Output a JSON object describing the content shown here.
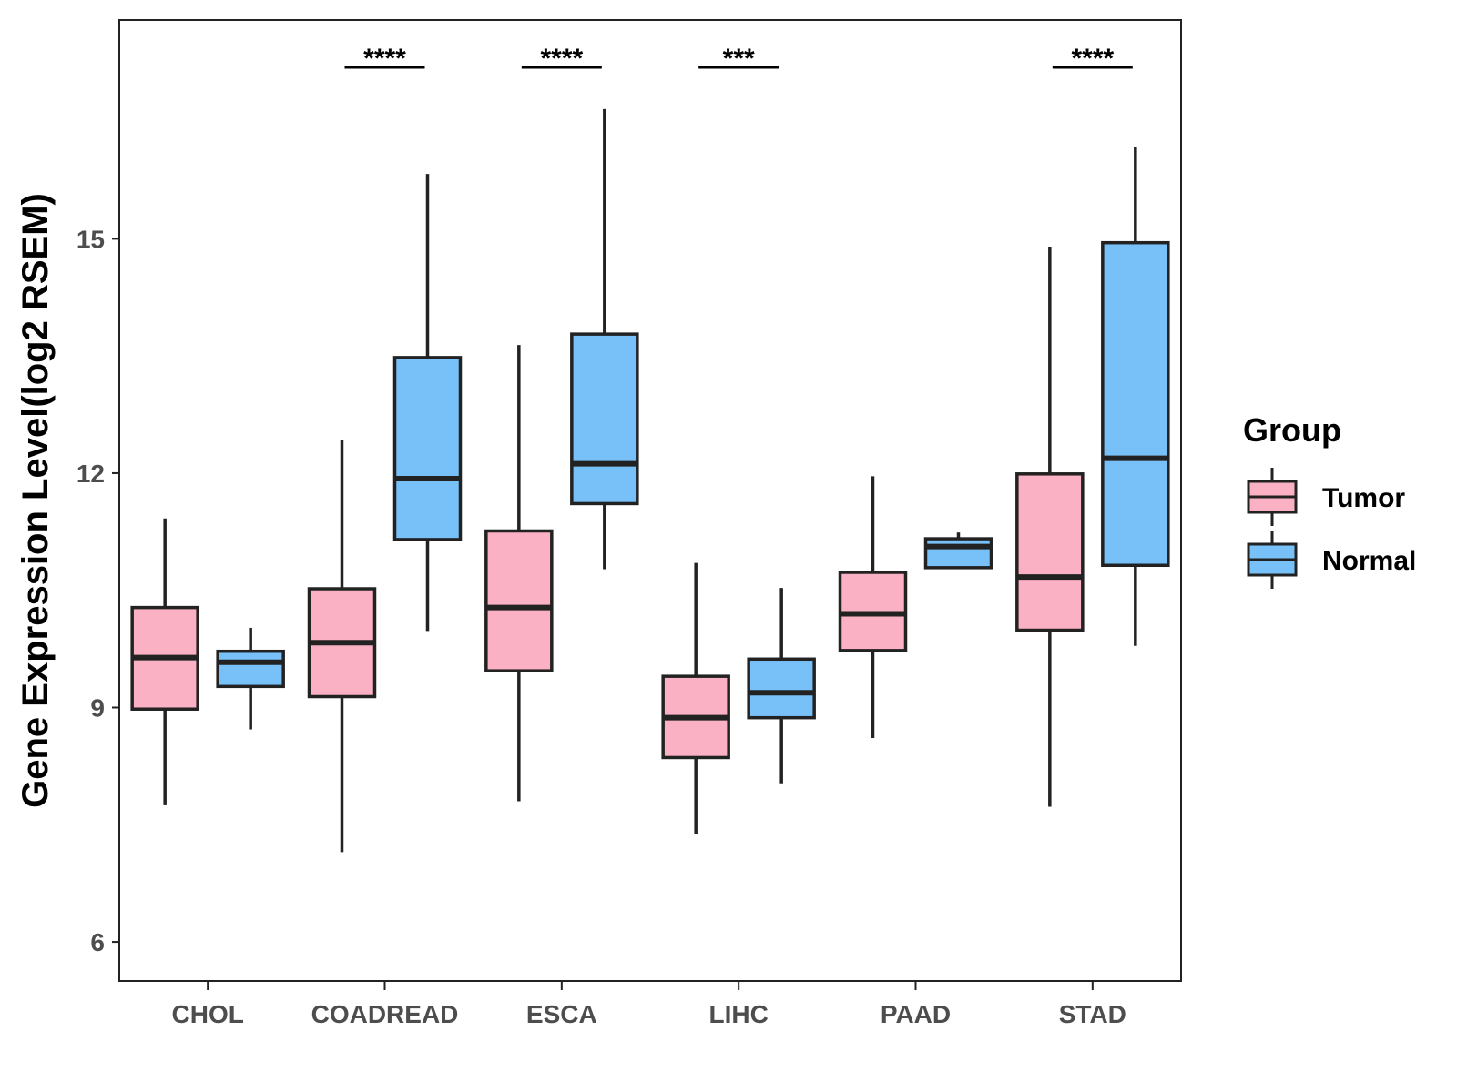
{
  "chart_data": {
    "type": "boxplot",
    "title": "",
    "xlabel": "",
    "ylabel": "Gene Expression Level(log2 RSEM)",
    "ylim": [
      5.5,
      17.8
    ],
    "yticks": [
      6,
      9,
      12,
      15
    ],
    "categories": [
      "CHOL",
      "COADREAD",
      "ESCA",
      "LIHC",
      "PAAD",
      "STAD"
    ],
    "series": [
      {
        "name": "Tumor",
        "color": "#FBB1C4",
        "boxes": [
          {
            "min": 7.75,
            "q1": 8.98,
            "median": 9.64,
            "q3": 10.28,
            "max": 11.42
          },
          {
            "min": 7.15,
            "q1": 9.14,
            "median": 9.83,
            "q3": 10.52,
            "max": 12.42
          },
          {
            "min": 7.8,
            "q1": 9.47,
            "median": 10.28,
            "q3": 11.26,
            "max": 13.64
          },
          {
            "min": 7.38,
            "q1": 8.36,
            "median": 8.87,
            "q3": 9.4,
            "max": 10.85
          },
          {
            "min": 8.61,
            "q1": 9.73,
            "median": 10.2,
            "q3": 10.73,
            "max": 11.96
          },
          {
            "min": 7.73,
            "q1": 9.99,
            "median": 10.67,
            "q3": 11.99,
            "max": 14.9
          }
        ]
      },
      {
        "name": "Normal",
        "color": "#77C1F8",
        "boxes": [
          {
            "min": 8.72,
            "q1": 9.27,
            "median": 9.58,
            "q3": 9.72,
            "max": 10.02
          },
          {
            "min": 9.98,
            "q1": 11.15,
            "median": 11.93,
            "q3": 13.48,
            "max": 15.83
          },
          {
            "min": 10.77,
            "q1": 11.61,
            "median": 12.12,
            "q3": 13.78,
            "max": 16.66
          },
          {
            "min": 8.03,
            "q1": 8.87,
            "median": 9.19,
            "q3": 9.62,
            "max": 10.53
          },
          {
            "min": 10.79,
            "q1": 10.79,
            "median": 11.06,
            "q3": 11.16,
            "max": 11.24
          },
          {
            "min": 9.79,
            "q1": 10.82,
            "median": 12.19,
            "q3": 14.95,
            "max": 16.17
          }
        ]
      }
    ],
    "significance": [
      {
        "category": "COADREAD",
        "label": "****"
      },
      {
        "category": "ESCA",
        "label": "****"
      },
      {
        "category": "LIHC",
        "label": "***"
      },
      {
        "category": "STAD",
        "label": "****"
      }
    ],
    "legend": {
      "title": "Group",
      "items": [
        {
          "label": "Tumor",
          "color": "#FBB1C4"
        },
        {
          "label": "Normal",
          "color": "#77C1F8"
        }
      ],
      "position": "right"
    },
    "grid": false
  }
}
